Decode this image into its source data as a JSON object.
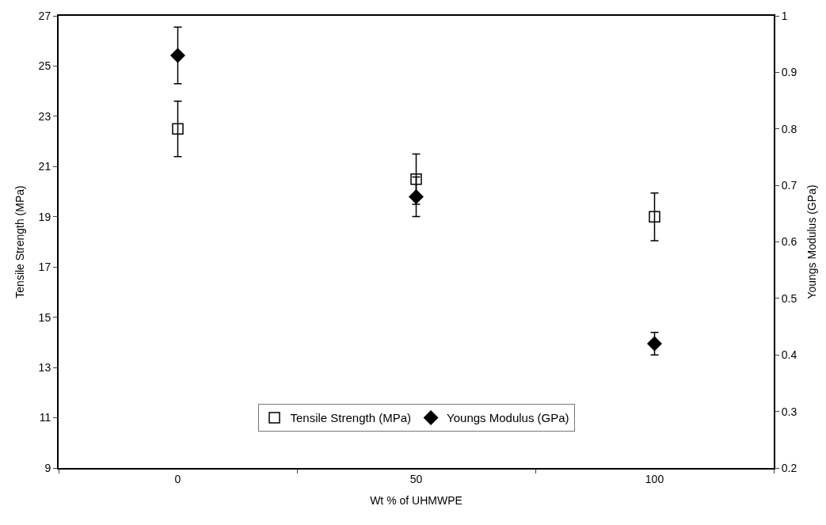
{
  "chart_data": {
    "type": "scatter",
    "xlabel": "Wt % of UHMWPE",
    "ylabel": "Tensile Strength (MPa)",
    "y2label": "Youngs Modulus (GPa)",
    "categories": [
      "0",
      "50",
      "100"
    ],
    "series": [
      {
        "name": "Tensile Strength (MPa)",
        "color": "#000000",
        "marker": "square",
        "values": [
          22.5,
          20.5,
          19.0
        ],
        "errors": [
          1.1,
          1.0,
          0.95
        ]
      },
      {
        "name": "Youngs Modulus (GPa)",
        "color": "#000000",
        "marker": "diamond",
        "axis": "y2",
        "values": [
          0.93,
          0.68,
          0.42
        ],
        "errors": [
          0.05,
          0.035,
          0.02
        ]
      }
    ],
    "ylim": [
      9,
      27
    ],
    "yticks": [
      9,
      11,
      13,
      15,
      17,
      19,
      21,
      23,
      25,
      27
    ],
    "y2lim": [
      0.2,
      1
    ],
    "y2ticks": [
      0.2,
      0.3,
      0.4,
      0.5,
      0.6,
      0.7,
      0.8,
      0.9,
      1
    ],
    "legend": "bottom"
  }
}
